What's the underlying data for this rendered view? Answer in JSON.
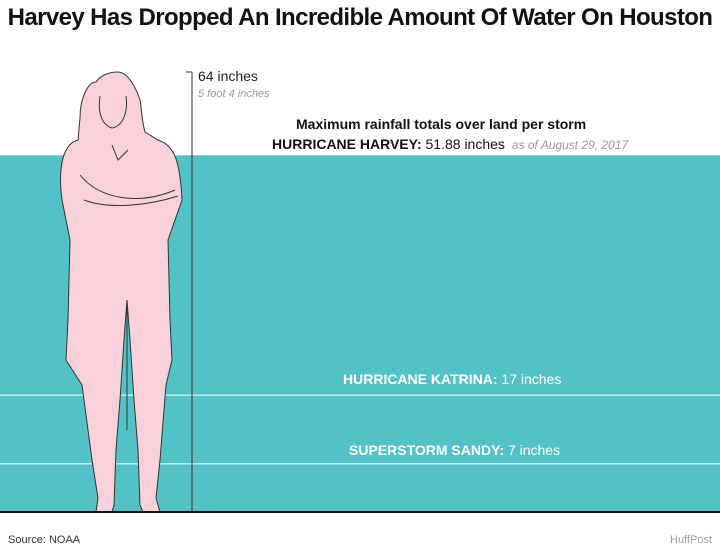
{
  "title": "Harvey Has Dropped An Incredible Amount Of Water On Houston",
  "source": "Source: NOAA",
  "credit": "HuffPost",
  "colors": {
    "water": "#52c2c7",
    "figure_fill": "#f8d1da",
    "figure_stroke": "#333333",
    "ref_line": "#333333",
    "water_divider": "#ffffff"
  },
  "chart_data": {
    "type": "area",
    "title": "Maximum rainfall totals over land per storm",
    "unit": "inches",
    "reference": {
      "label": "64 inches",
      "note": "5 foot 4 inches",
      "value": 64
    },
    "series": [
      {
        "name": "HURRICANE HARVEY",
        "value": 51.88,
        "value_label": "51.88 inches",
        "note": "as of August 29, 2017"
      },
      {
        "name": "HURRICANE KATRINA",
        "value": 17,
        "value_label": "17 inches"
      },
      {
        "name": "SUPERSTORM SANDY",
        "value": 7,
        "value_label": "7 inches"
      }
    ],
    "ylim": [
      0,
      64
    ]
  }
}
